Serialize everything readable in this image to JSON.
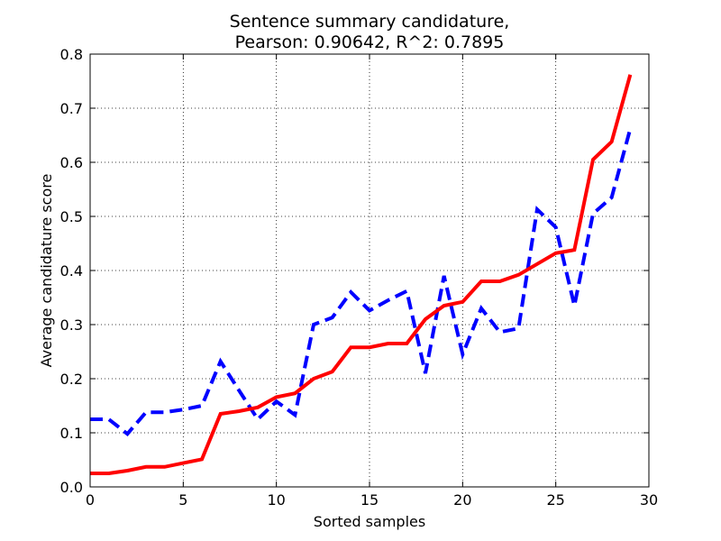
{
  "chart_data": {
    "type": "line",
    "title": [
      "Sentence summary candidature,",
      "Pearson: 0.90642, R^2: 0.7895"
    ],
    "xlabel": "Sorted samples",
    "ylabel": "Average candidature score",
    "xlim": [
      0,
      30
    ],
    "ylim": [
      0,
      0.8
    ],
    "xticks": [
      0,
      5,
      10,
      15,
      20,
      25,
      30
    ],
    "xtick_labels": [
      "0",
      "5",
      "10",
      "15",
      "20",
      "25",
      "30"
    ],
    "yticks": [
      0.0,
      0.1,
      0.2,
      0.3,
      0.4,
      0.5,
      0.6,
      0.7,
      0.8
    ],
    "ytick_labels": [
      "0.0",
      "0.1",
      "0.2",
      "0.3",
      "0.4",
      "0.5",
      "0.6",
      "0.7",
      "0.8"
    ],
    "grid": true,
    "x": [
      0,
      1,
      2,
      3,
      4,
      5,
      6,
      7,
      8,
      9,
      10,
      11,
      12,
      13,
      14,
      15,
      16,
      17,
      18,
      19,
      20,
      21,
      22,
      23,
      24,
      25,
      26,
      27,
      28,
      29
    ],
    "series": [
      {
        "style": "dashed",
        "color": "#0000ff",
        "values": [
          0.125,
          0.125,
          0.098,
          0.138,
          0.138,
          0.143,
          0.15,
          0.232,
          0.178,
          0.125,
          0.158,
          0.133,
          0.3,
          0.313,
          0.36,
          0.326,
          0.345,
          0.362,
          0.21,
          0.39,
          0.245,
          0.33,
          0.286,
          0.293,
          0.513,
          0.48,
          0.335,
          0.505,
          0.535,
          0.662
        ]
      },
      {
        "style": "solid",
        "color": "#ff0000",
        "values": [
          0.025,
          0.025,
          0.03,
          0.037,
          0.037,
          0.044,
          0.051,
          0.135,
          0.14,
          0.147,
          0.166,
          0.173,
          0.2,
          0.213,
          0.258,
          0.258,
          0.265,
          0.265,
          0.31,
          0.335,
          0.342,
          0.38,
          0.38,
          0.392,
          0.412,
          0.432,
          0.438,
          0.605,
          0.638,
          0.762
        ]
      }
    ]
  }
}
